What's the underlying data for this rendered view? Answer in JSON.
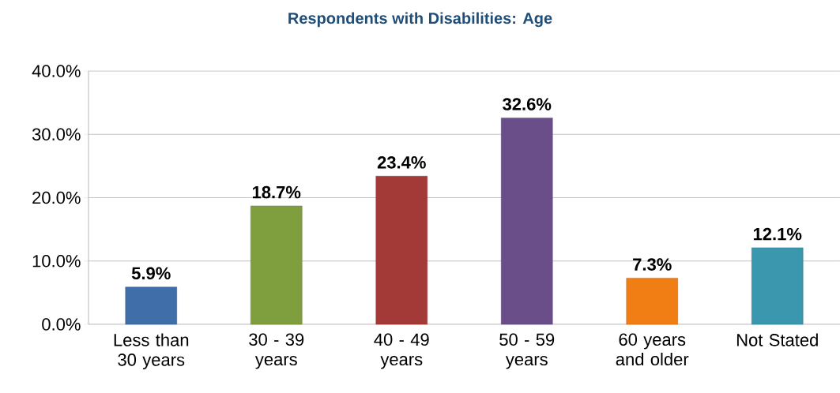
{
  "chart_data": {
    "type": "bar",
    "title": "Respondents with Disabilities: Age",
    "categories": [
      "Less than 30 years",
      "30 - 39 years",
      "40 - 49 years",
      "50 - 59 years",
      "60 years and older",
      "Not Stated"
    ],
    "values": [
      5.9,
      18.7,
      23.4,
      32.6,
      7.3,
      12.1
    ],
    "value_labels": [
      "5.9%",
      "18.7%",
      "23.4%",
      "32.6%",
      "7.3%",
      "12.1%"
    ],
    "colors": [
      "#3f6ea8",
      "#7f9f3f",
      "#a33a38",
      "#6a4e8a",
      "#f07e14",
      "#3a97ad"
    ],
    "ylim": [
      0,
      40
    ],
    "yticks": [
      {
        "value": 0,
        "label": "0.0%"
      },
      {
        "value": 10,
        "label": "10.0%"
      },
      {
        "value": 20,
        "label": "20.0%"
      },
      {
        "value": 30,
        "label": "30.0%"
      },
      {
        "value": 40,
        "label": "40.0%"
      }
    ],
    "grid": "y"
  }
}
